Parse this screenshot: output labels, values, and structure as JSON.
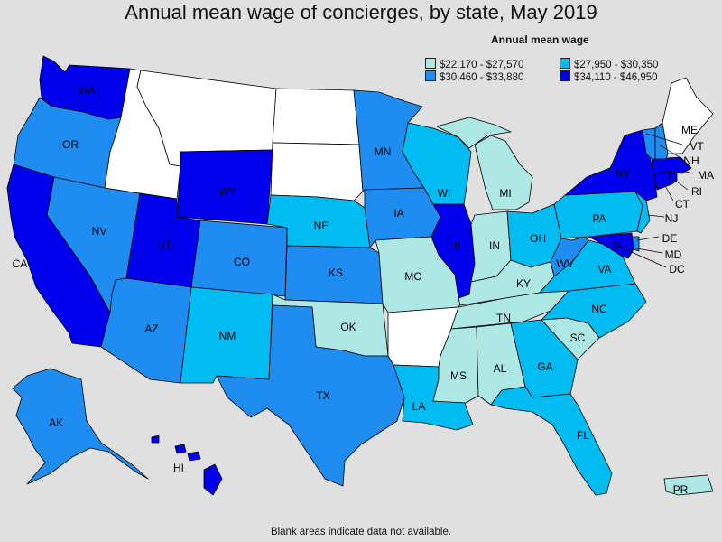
{
  "title": "Annual mean wage of concierges, by state, May 2019",
  "legend": {
    "title": "Annual mean wage",
    "items": [
      {
        "label": "$22,170 - $27,570",
        "color": "#aee8e4"
      },
      {
        "label": "$27,950 - $30,350",
        "color": "#00bcf2"
      },
      {
        "label": "$30,460 - $33,880",
        "color": "#1e8cf0"
      },
      {
        "label": "$34,110 - $46,950",
        "color": "#0000ee"
      }
    ]
  },
  "colors": {
    "no_data": "#ffffff",
    "background": "#e0e0e0"
  },
  "states": {
    "WA": {
      "label": "WA",
      "class": 4
    },
    "OR": {
      "label": "OR",
      "class": 3
    },
    "CA": {
      "label": "CA",
      "class": 4
    },
    "NV": {
      "label": "NV",
      "class": 3
    },
    "ID": {
      "label": "",
      "class": 0
    },
    "MT": {
      "label": "",
      "class": 0
    },
    "WY": {
      "label": "WY",
      "class": 4
    },
    "UT": {
      "label": "UT",
      "class": 4
    },
    "AZ": {
      "label": "AZ",
      "class": 3
    },
    "CO": {
      "label": "CO",
      "class": 3
    },
    "NM": {
      "label": "NM",
      "class": 2
    },
    "ND": {
      "label": "",
      "class": 0
    },
    "SD": {
      "label": "",
      "class": 0
    },
    "NE": {
      "label": "NE",
      "class": 2
    },
    "KS": {
      "label": "KS",
      "class": 3
    },
    "OK": {
      "label": "OK",
      "class": 1
    },
    "TX": {
      "label": "TX",
      "class": 3
    },
    "MN": {
      "label": "MN",
      "class": 3
    },
    "IA": {
      "label": "IA",
      "class": 3
    },
    "MO": {
      "label": "MO",
      "class": 1
    },
    "AR": {
      "label": "",
      "class": 0
    },
    "LA": {
      "label": "LA",
      "class": 2
    },
    "WI": {
      "label": "WI",
      "class": 2
    },
    "IL": {
      "label": "IL",
      "class": 4
    },
    "MI": {
      "label": "MI",
      "class": 1
    },
    "IN": {
      "label": "IN",
      "class": 1
    },
    "OH": {
      "label": "OH",
      "class": 2
    },
    "KY": {
      "label": "KY",
      "class": 1
    },
    "TN": {
      "label": "TN",
      "class": 1
    },
    "MS": {
      "label": "MS",
      "class": 1
    },
    "AL": {
      "label": "AL",
      "class": 1
    },
    "GA": {
      "label": "GA",
      "class": 2
    },
    "FL": {
      "label": "FL",
      "class": 2
    },
    "SC": {
      "label": "SC",
      "class": 1
    },
    "NC": {
      "label": "NC",
      "class": 2
    },
    "VA": {
      "label": "VA",
      "class": 2
    },
    "WV": {
      "label": "WV",
      "class": 3
    },
    "PA": {
      "label": "PA",
      "class": 2
    },
    "NY": {
      "label": "NY",
      "class": 4
    },
    "NJ": {
      "label": "NJ",
      "class": 2
    },
    "DE": {
      "label": "DE",
      "class": 3
    },
    "MD": {
      "label": "MD",
      "class": 4
    },
    "DC": {
      "label": "DC",
      "class": 4
    },
    "CT": {
      "label": "CT",
      "class": 4
    },
    "RI": {
      "label": "RI",
      "class": 4
    },
    "MA": {
      "label": "MA",
      "class": 4
    },
    "VT": {
      "label": "VT",
      "class": 3
    },
    "NH": {
      "label": "NH",
      "class": 3
    },
    "ME": {
      "label": "ME",
      "class": 0
    },
    "AK": {
      "label": "AK",
      "class": 3
    },
    "HI": {
      "label": "HI",
      "class": 4
    },
    "PR": {
      "label": "PR",
      "class": 1
    }
  },
  "footer": "Blank areas indicate data not available."
}
